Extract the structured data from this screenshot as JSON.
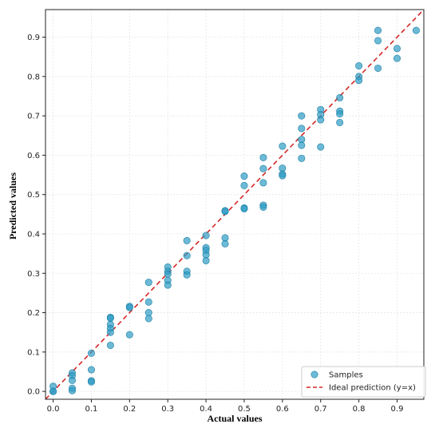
{
  "chart_data": {
    "type": "scatter",
    "title": "",
    "xlabel": "Actual values",
    "ylabel": "Predicted values",
    "xlim": [
      -0.02,
      0.97
    ],
    "ylim": [
      -0.02,
      0.97
    ],
    "xticks": [
      "0.0",
      "0.1",
      "0.2",
      "0.3",
      "0.4",
      "0.5",
      "0.6",
      "0.7",
      "0.8",
      "0.9"
    ],
    "yticks": [
      "0.0",
      "0.1",
      "0.2",
      "0.3",
      "0.4",
      "0.5",
      "0.6",
      "0.7",
      "0.8",
      "0.9"
    ],
    "grid": true,
    "legend_position": "bottom-right",
    "series": [
      {
        "name": "Samples",
        "kind": "scatter",
        "color": "#2E9CC4",
        "points": [
          [
            0.0,
            0.013
          ],
          [
            0.0,
            0.0
          ],
          [
            0.0,
            0.0
          ],
          [
            0.05,
            0.047
          ],
          [
            0.05,
            0.04
          ],
          [
            0.05,
            0.028
          ],
          [
            0.05,
            0.008
          ],
          [
            0.05,
            0.002
          ],
          [
            0.1,
            0.097
          ],
          [
            0.1,
            0.055
          ],
          [
            0.1,
            0.027
          ],
          [
            0.1,
            0.024
          ],
          [
            0.15,
            0.188
          ],
          [
            0.15,
            0.186
          ],
          [
            0.15,
            0.17
          ],
          [
            0.15,
            0.16
          ],
          [
            0.15,
            0.15
          ],
          [
            0.15,
            0.117
          ],
          [
            0.2,
            0.216
          ],
          [
            0.2,
            0.213
          ],
          [
            0.2,
            0.144
          ],
          [
            0.25,
            0.277
          ],
          [
            0.25,
            0.227
          ],
          [
            0.25,
            0.2
          ],
          [
            0.25,
            0.185
          ],
          [
            0.3,
            0.316
          ],
          [
            0.3,
            0.305
          ],
          [
            0.3,
            0.298
          ],
          [
            0.3,
            0.282
          ],
          [
            0.3,
            0.27
          ],
          [
            0.35,
            0.383
          ],
          [
            0.35,
            0.345
          ],
          [
            0.35,
            0.305
          ],
          [
            0.35,
            0.296
          ],
          [
            0.4,
            0.396
          ],
          [
            0.4,
            0.365
          ],
          [
            0.4,
            0.358
          ],
          [
            0.4,
            0.347
          ],
          [
            0.4,
            0.332
          ],
          [
            0.45,
            0.459
          ],
          [
            0.45,
            0.457
          ],
          [
            0.45,
            0.39
          ],
          [
            0.45,
            0.375
          ],
          [
            0.5,
            0.547
          ],
          [
            0.5,
            0.523
          ],
          [
            0.5,
            0.466
          ],
          [
            0.5,
            0.464
          ],
          [
            0.55,
            0.594
          ],
          [
            0.55,
            0.566
          ],
          [
            0.55,
            0.53
          ],
          [
            0.55,
            0.473
          ],
          [
            0.55,
            0.468
          ],
          [
            0.6,
            0.623
          ],
          [
            0.6,
            0.567
          ],
          [
            0.6,
            0.552
          ],
          [
            0.6,
            0.548
          ],
          [
            0.65,
            0.7
          ],
          [
            0.65,
            0.668
          ],
          [
            0.65,
            0.64
          ],
          [
            0.65,
            0.625
          ],
          [
            0.65,
            0.592
          ],
          [
            0.7,
            0.716
          ],
          [
            0.7,
            0.703
          ],
          [
            0.7,
            0.69
          ],
          [
            0.7,
            0.621
          ],
          [
            0.75,
            0.746
          ],
          [
            0.75,
            0.712
          ],
          [
            0.75,
            0.705
          ],
          [
            0.75,
            0.683
          ],
          [
            0.8,
            0.827
          ],
          [
            0.8,
            0.8
          ],
          [
            0.8,
            0.79
          ],
          [
            0.85,
            0.917
          ],
          [
            0.85,
            0.891
          ],
          [
            0.85,
            0.821
          ],
          [
            0.9,
            0.871
          ],
          [
            0.9,
            0.846
          ],
          [
            0.95,
            0.917
          ]
        ]
      },
      {
        "name": "Ideal prediction (y=x)",
        "kind": "line",
        "color": "#D62728",
        "points": [
          [
            -0.02,
            -0.02
          ],
          [
            0.97,
            0.97
          ]
        ]
      }
    ]
  }
}
